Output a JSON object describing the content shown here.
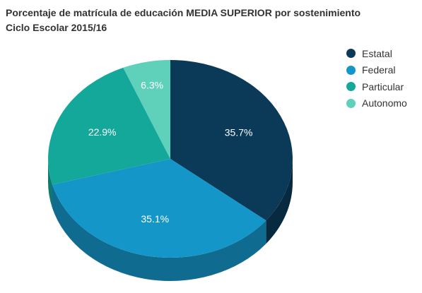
{
  "chart_data": {
    "type": "pie",
    "title": "Porcentaje de matrícula de educación MEDIA SUPERIOR por sostenimiento",
    "subtitle": "Ciclo Escolar 2015/16",
    "labels": [
      "Estatal",
      "Federal",
      "Particular",
      "Autonomo"
    ],
    "values": [
      35.7,
      35.1,
      22.9,
      6.3
    ],
    "data_labels": [
      "35.7%",
      "35.1%",
      "22.9%",
      "6.3%"
    ],
    "colors": [
      "#0b3a59",
      "#1596c8",
      "#14a89a",
      "#5fd0ba"
    ],
    "legend_position": "right",
    "style": "3d"
  }
}
